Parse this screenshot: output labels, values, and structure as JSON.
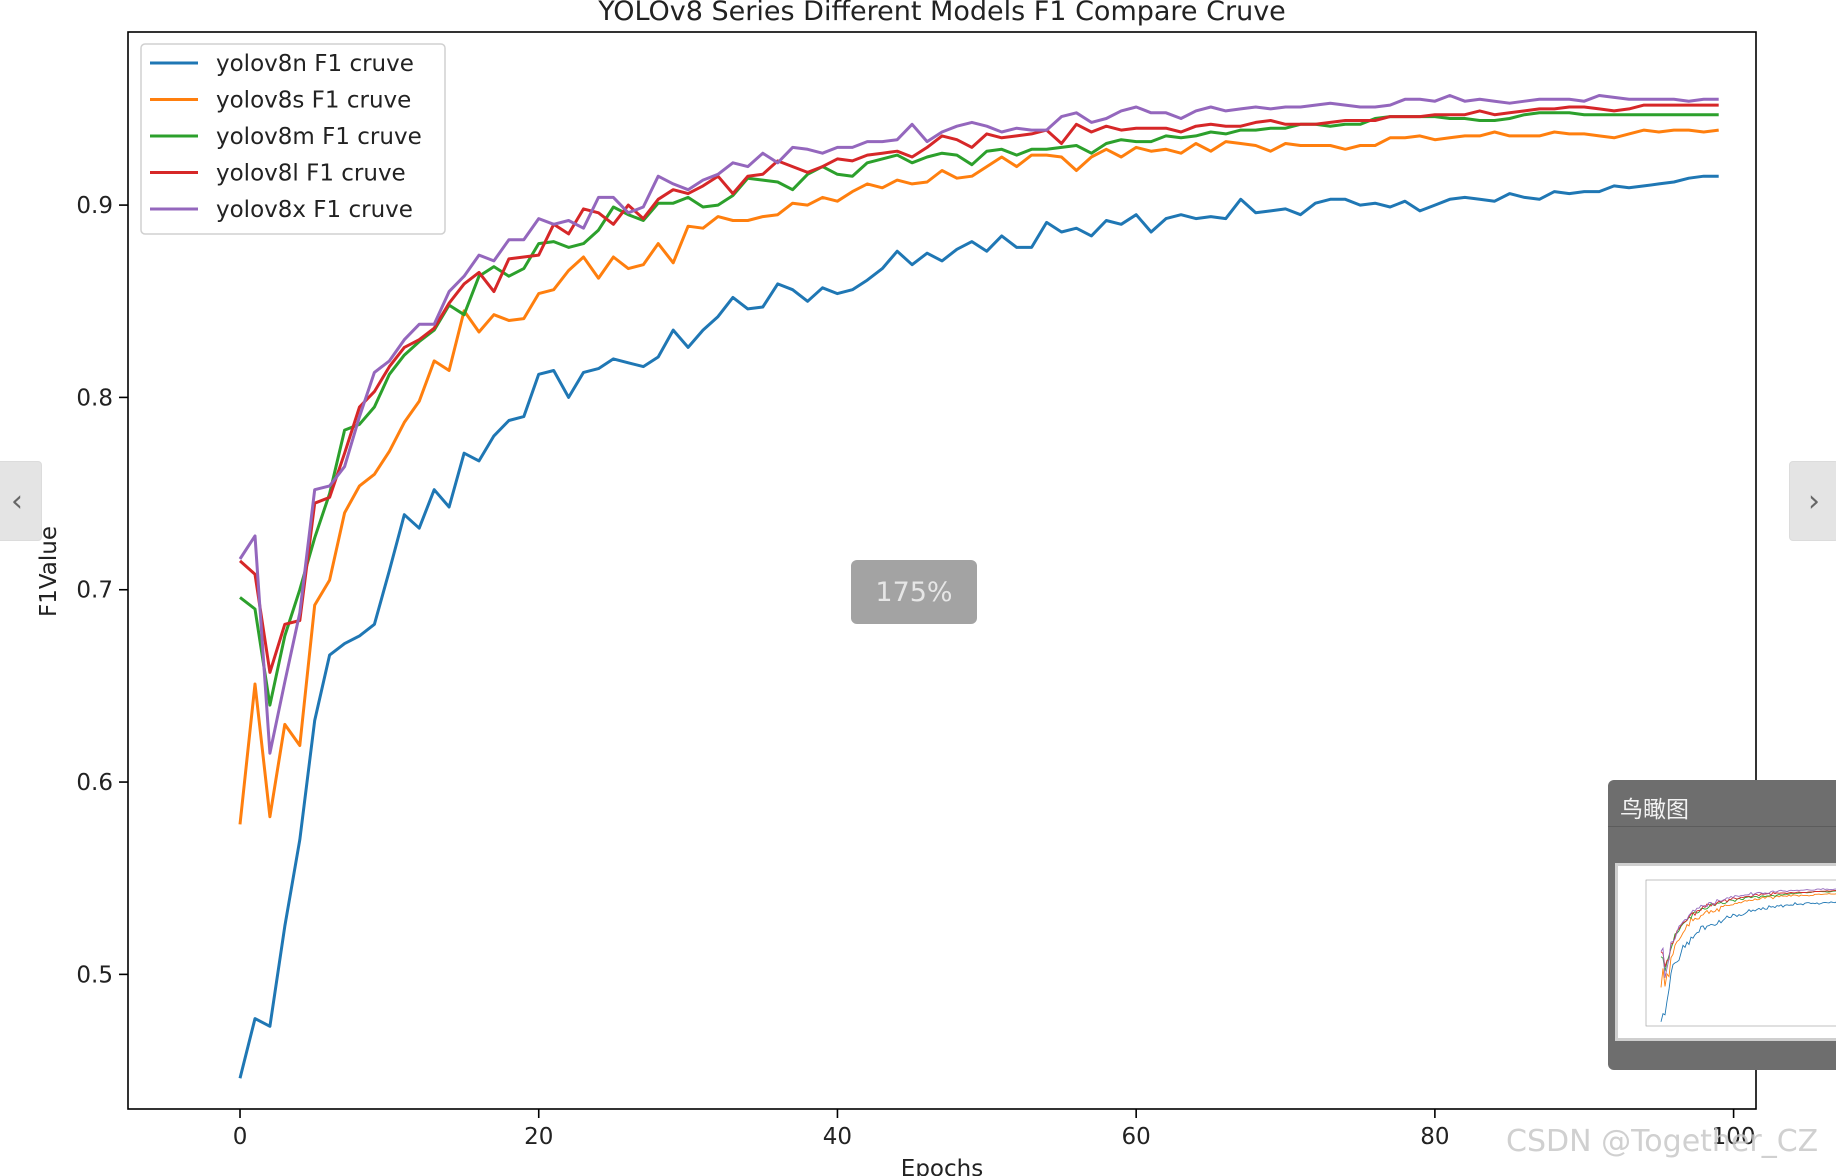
{
  "viewer": {
    "zoom_level": "175%",
    "prev_icon": "chevron-left-icon",
    "next_icon": "chevron-right-icon",
    "prev_glyph": "‹",
    "next_glyph": "›",
    "overview_title": "鸟瞰图",
    "watermark": "CSDN @Together_CZ"
  },
  "chart_data": {
    "type": "line",
    "title": "YOLOv8 Series Different Models F1 Compare Cruve",
    "xlabel": "Epochs",
    "ylabel": "F1Value",
    "xlim": [
      -7.5,
      101.5
    ],
    "ylim": [
      0.43,
      0.99
    ],
    "xticks": [
      0,
      20,
      40,
      60,
      80,
      100
    ],
    "yticks": [
      0.5,
      0.6,
      0.7,
      0.8,
      0.9
    ],
    "grid": false,
    "legend": "top-left",
    "x": [
      0,
      1,
      2,
      3,
      4,
      5,
      6,
      7,
      8,
      9,
      10,
      11,
      12,
      13,
      14,
      15,
      16,
      17,
      18,
      19,
      20,
      21,
      22,
      23,
      24,
      25,
      26,
      27,
      28,
      29,
      30,
      31,
      32,
      33,
      34,
      35,
      36,
      37,
      38,
      39,
      40,
      41,
      42,
      43,
      44,
      45,
      46,
      47,
      48,
      49,
      50,
      51,
      52,
      53,
      54,
      55,
      56,
      57,
      58,
      59,
      60,
      61,
      62,
      63,
      64,
      65,
      66,
      67,
      68,
      69,
      70,
      71,
      72,
      73,
      74,
      75,
      76,
      77,
      78,
      79,
      80,
      81,
      82,
      83,
      84,
      85,
      86,
      87,
      88,
      89,
      90,
      91,
      92,
      93,
      94,
      95,
      96,
      97,
      98,
      99
    ],
    "series": [
      {
        "name": "yolov8n F1 cruve",
        "color": "#1f77b4",
        "values": [
          0.446,
          0.477,
          0.473,
          0.525,
          0.57,
          0.632,
          0.666,
          0.672,
          0.676,
          0.682,
          0.71,
          0.739,
          0.732,
          0.752,
          0.743,
          0.771,
          0.767,
          0.78,
          0.788,
          0.79,
          0.812,
          0.814,
          0.8,
          0.813,
          0.815,
          0.82,
          0.818,
          0.816,
          0.821,
          0.835,
          0.826,
          0.835,
          0.842,
          0.852,
          0.846,
          0.847,
          0.859,
          0.856,
          0.85,
          0.857,
          0.854,
          0.856,
          0.861,
          0.867,
          0.876,
          0.869,
          0.875,
          0.871,
          0.877,
          0.881,
          0.876,
          0.884,
          0.878,
          0.878,
          0.891,
          0.886,
          0.888,
          0.884,
          0.892,
          0.89,
          0.895,
          0.886,
          0.893,
          0.895,
          0.893,
          0.894,
          0.893,
          0.903,
          0.896,
          0.897,
          0.898,
          0.895,
          0.901,
          0.903,
          0.903,
          0.9,
          0.901,
          0.899,
          0.902,
          0.897,
          0.9,
          0.903,
          0.904,
          0.903,
          0.902,
          0.906,
          0.904,
          0.903,
          0.907,
          0.906,
          0.907,
          0.907,
          0.91,
          0.909,
          0.91,
          0.911,
          0.912,
          0.914,
          0.915,
          0.915
        ]
      },
      {
        "name": "yolov8s F1 cruve",
        "color": "#ff7f0e",
        "values": [
          0.578,
          0.651,
          0.582,
          0.63,
          0.619,
          0.692,
          0.705,
          0.74,
          0.754,
          0.76,
          0.772,
          0.787,
          0.798,
          0.819,
          0.814,
          0.845,
          0.834,
          0.843,
          0.84,
          0.841,
          0.854,
          0.856,
          0.866,
          0.873,
          0.862,
          0.873,
          0.867,
          0.869,
          0.88,
          0.87,
          0.889,
          0.888,
          0.894,
          0.892,
          0.892,
          0.894,
          0.895,
          0.901,
          0.9,
          0.904,
          0.902,
          0.907,
          0.911,
          0.909,
          0.913,
          0.911,
          0.912,
          0.918,
          0.914,
          0.915,
          0.92,
          0.925,
          0.92,
          0.926,
          0.926,
          0.925,
          0.918,
          0.925,
          0.929,
          0.925,
          0.93,
          0.928,
          0.929,
          0.927,
          0.932,
          0.928,
          0.933,
          0.932,
          0.931,
          0.928,
          0.932,
          0.931,
          0.931,
          0.931,
          0.929,
          0.931,
          0.931,
          0.935,
          0.935,
          0.936,
          0.934,
          0.935,
          0.936,
          0.936,
          0.938,
          0.936,
          0.936,
          0.936,
          0.938,
          0.937,
          0.937,
          0.936,
          0.935,
          0.937,
          0.939,
          0.938,
          0.939,
          0.939,
          0.938,
          0.939
        ]
      },
      {
        "name": "yolov8m F1 cruve",
        "color": "#2ca02c",
        "values": [
          0.696,
          0.69,
          0.64,
          0.676,
          0.7,
          0.727,
          0.75,
          0.783,
          0.786,
          0.795,
          0.812,
          0.822,
          0.829,
          0.835,
          0.848,
          0.843,
          0.863,
          0.868,
          0.863,
          0.867,
          0.88,
          0.881,
          0.878,
          0.88,
          0.887,
          0.899,
          0.895,
          0.892,
          0.901,
          0.901,
          0.904,
          0.899,
          0.9,
          0.905,
          0.914,
          0.913,
          0.912,
          0.908,
          0.916,
          0.92,
          0.916,
          0.915,
          0.922,
          0.924,
          0.926,
          0.922,
          0.925,
          0.927,
          0.926,
          0.921,
          0.928,
          0.929,
          0.926,
          0.929,
          0.929,
          0.93,
          0.931,
          0.927,
          0.932,
          0.934,
          0.933,
          0.933,
          0.936,
          0.935,
          0.936,
          0.938,
          0.937,
          0.939,
          0.939,
          0.94,
          0.94,
          0.942,
          0.942,
          0.941,
          0.942,
          0.942,
          0.945,
          0.946,
          0.946,
          0.946,
          0.946,
          0.945,
          0.945,
          0.944,
          0.944,
          0.945,
          0.947,
          0.948,
          0.948,
          0.948,
          0.947,
          0.947,
          0.947,
          0.947,
          0.947,
          0.947,
          0.947,
          0.947,
          0.947,
          0.947
        ]
      },
      {
        "name": "yolov8l F1 cruve",
        "color": "#d62728",
        "values": [
          0.715,
          0.708,
          0.657,
          0.682,
          0.684,
          0.745,
          0.748,
          0.771,
          0.795,
          0.803,
          0.816,
          0.826,
          0.83,
          0.836,
          0.849,
          0.859,
          0.865,
          0.855,
          0.872,
          0.873,
          0.874,
          0.89,
          0.885,
          0.898,
          0.896,
          0.89,
          0.9,
          0.893,
          0.903,
          0.908,
          0.906,
          0.91,
          0.915,
          0.906,
          0.915,
          0.916,
          0.923,
          0.92,
          0.917,
          0.92,
          0.924,
          0.923,
          0.926,
          0.927,
          0.928,
          0.925,
          0.93,
          0.936,
          0.934,
          0.93,
          0.937,
          0.935,
          0.936,
          0.937,
          0.939,
          0.932,
          0.942,
          0.938,
          0.941,
          0.939,
          0.94,
          0.94,
          0.94,
          0.938,
          0.941,
          0.942,
          0.941,
          0.941,
          0.943,
          0.944,
          0.942,
          0.942,
          0.942,
          0.943,
          0.944,
          0.944,
          0.944,
          0.946,
          0.946,
          0.946,
          0.947,
          0.947,
          0.947,
          0.949,
          0.947,
          0.948,
          0.949,
          0.95,
          0.95,
          0.951,
          0.951,
          0.95,
          0.949,
          0.95,
          0.952,
          0.952,
          0.952,
          0.952,
          0.952,
          0.952
        ]
      },
      {
        "name": "yolov8x F1 cruve",
        "color": "#9467bd",
        "values": [
          0.716,
          0.728,
          0.615,
          0.652,
          0.688,
          0.752,
          0.754,
          0.764,
          0.79,
          0.813,
          0.819,
          0.83,
          0.838,
          0.838,
          0.855,
          0.863,
          0.874,
          0.871,
          0.882,
          0.882,
          0.893,
          0.89,
          0.892,
          0.888,
          0.904,
          0.904,
          0.896,
          0.899,
          0.915,
          0.911,
          0.908,
          0.913,
          0.916,
          0.922,
          0.92,
          0.927,
          0.922,
          0.93,
          0.929,
          0.927,
          0.93,
          0.93,
          0.933,
          0.933,
          0.934,
          0.942,
          0.933,
          0.938,
          0.941,
          0.943,
          0.941,
          0.938,
          0.94,
          0.939,
          0.939,
          0.946,
          0.948,
          0.943,
          0.945,
          0.949,
          0.951,
          0.948,
          0.948,
          0.945,
          0.949,
          0.951,
          0.949,
          0.95,
          0.951,
          0.95,
          0.951,
          0.951,
          0.952,
          0.953,
          0.952,
          0.951,
          0.951,
          0.952,
          0.955,
          0.955,
          0.954,
          0.957,
          0.954,
          0.955,
          0.954,
          0.953,
          0.954,
          0.955,
          0.955,
          0.955,
          0.954,
          0.957,
          0.956,
          0.955,
          0.955,
          0.955,
          0.955,
          0.954,
          0.955,
          0.955
        ]
      }
    ]
  }
}
